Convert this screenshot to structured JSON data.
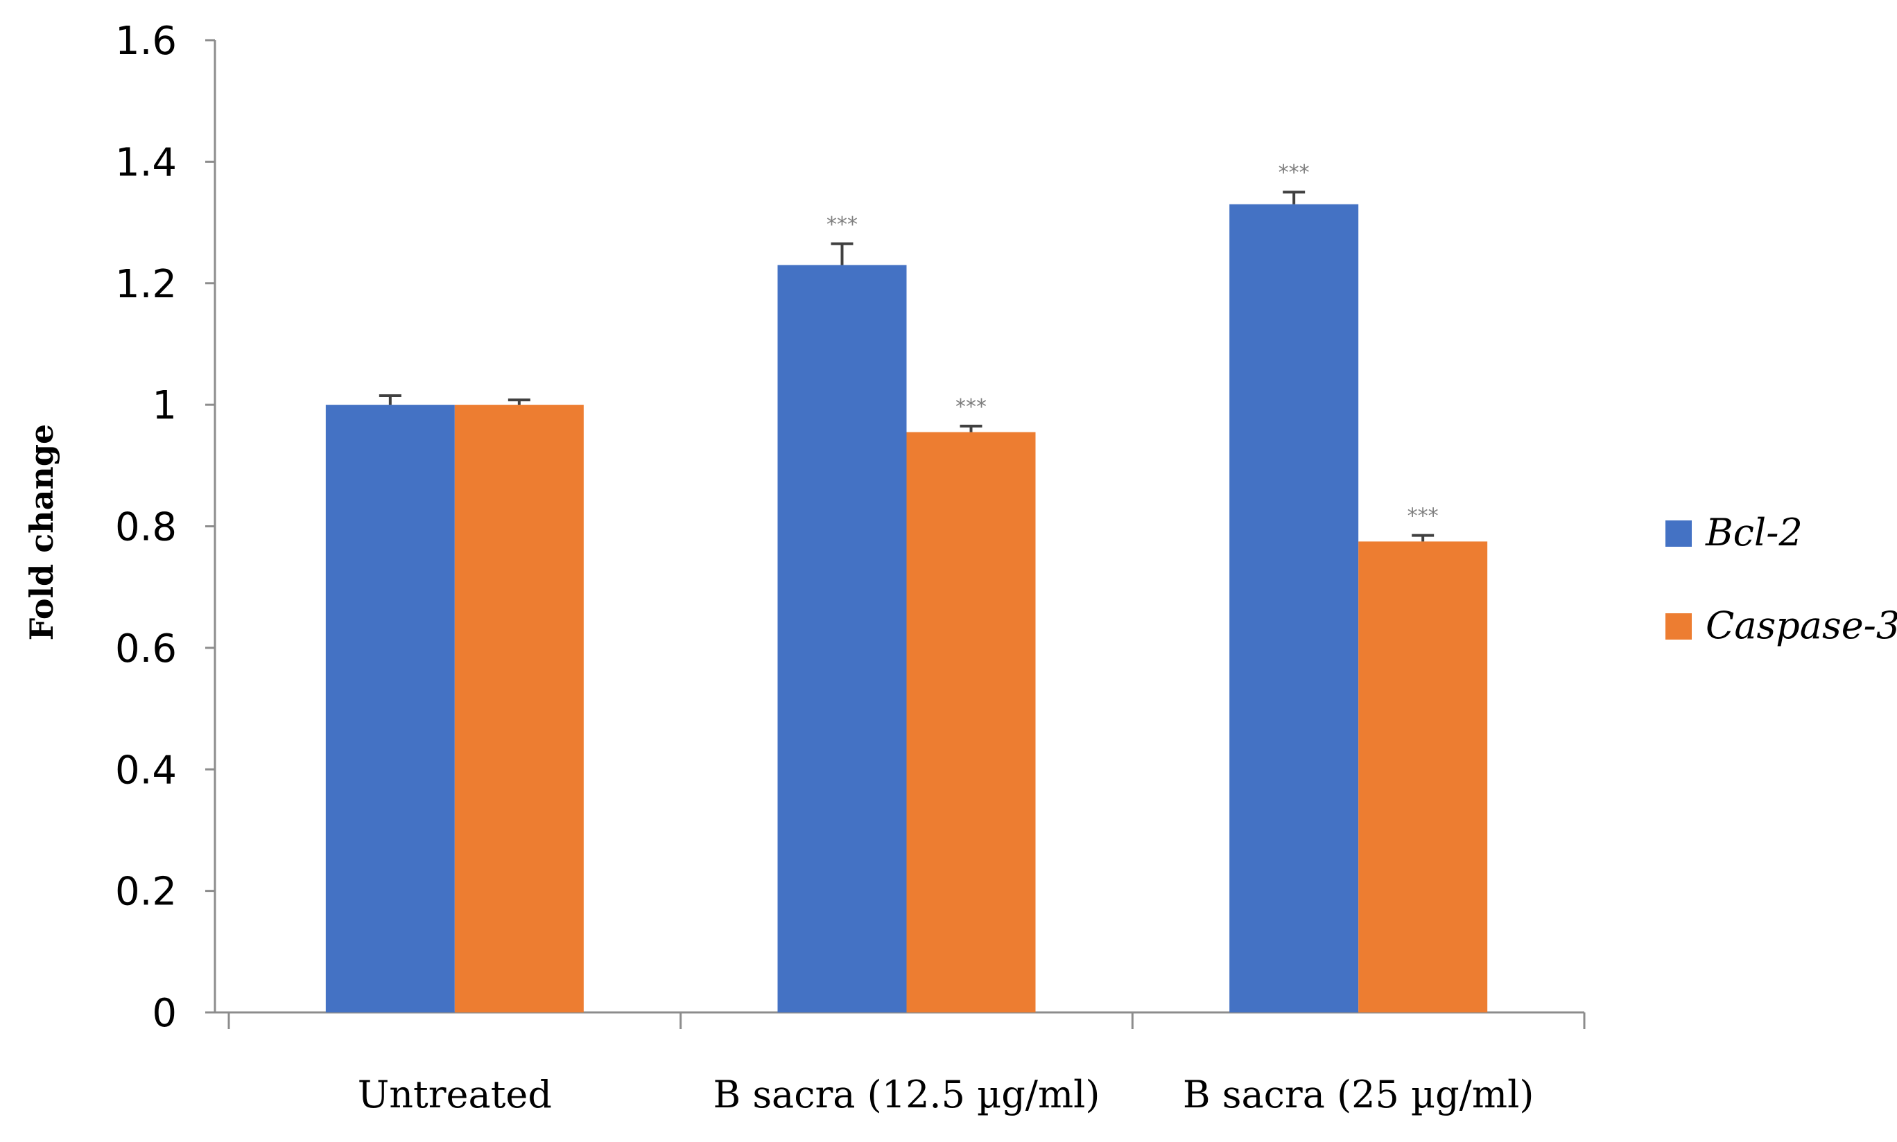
{
  "chart_data": {
    "type": "bar",
    "title": "",
    "xlabel": "",
    "ylabel": "Fold change",
    "ylim": [
      0,
      1.6
    ],
    "yticks": [
      "0",
      "0.2",
      "0.4",
      "0.6",
      "0.8",
      "1",
      "1.2",
      "1.4",
      "1.6"
    ],
    "grid": false,
    "legend_position": "right",
    "categories": [
      "Untreated",
      "B sacra (12.5 µg/ml)",
      "B sacra (25 µg/ml)"
    ],
    "series": [
      {
        "name": "Bcl-2",
        "color": "#4472C4",
        "values": [
          1.0,
          1.23,
          1.33
        ],
        "errors": [
          0.015,
          0.035,
          0.02
        ],
        "annotations": [
          "",
          "***",
          "***"
        ]
      },
      {
        "name": "Caspase-3",
        "color": "#ED7D31",
        "values": [
          1.0,
          0.955,
          0.775
        ],
        "errors": [
          0.008,
          0.01,
          0.01
        ],
        "annotations": [
          "",
          "***",
          "***"
        ]
      }
    ]
  }
}
